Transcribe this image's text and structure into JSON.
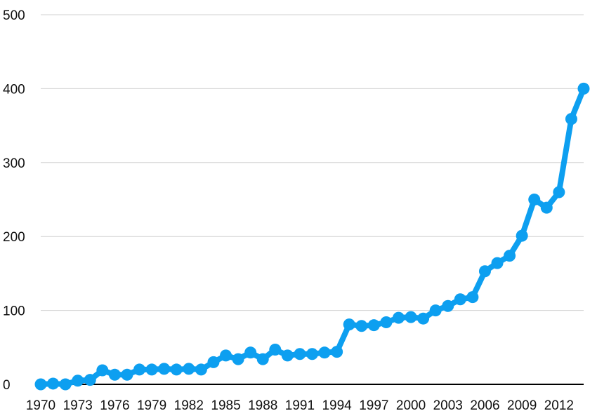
{
  "chart_data": {
    "type": "line",
    "title": "",
    "xlabel": "",
    "ylabel": "",
    "x": [
      1970,
      1971,
      1972,
      1973,
      1974,
      1975,
      1976,
      1977,
      1978,
      1979,
      1980,
      1981,
      1982,
      1983,
      1984,
      1985,
      1986,
      1987,
      1988,
      1989,
      1990,
      1991,
      1992,
      1993,
      1994,
      1995,
      1996,
      1997,
      1998,
      1999,
      2000,
      2001,
      2002,
      2003,
      2004,
      2005,
      2006,
      2007,
      2008,
      2009,
      2010,
      2011,
      2012,
      2013,
      2014
    ],
    "series": [
      {
        "values": [
          0,
          1,
          0,
          5,
          6,
          19,
          13,
          13,
          20,
          20,
          21,
          20,
          21,
          20,
          30,
          39,
          34,
          43,
          34,
          47,
          39,
          41,
          41,
          43,
          44,
          81,
          79,
          80,
          84,
          90,
          91,
          89,
          100,
          106,
          115,
          118,
          153,
          164,
          174,
          201,
          250,
          239,
          260,
          359,
          400
        ],
        "color": "#0d9ff0"
      }
    ],
    "ylim": [
      0,
      500
    ],
    "yticks": [
      0,
      100,
      200,
      300,
      400,
      500
    ],
    "xtick_labels": [
      "1970",
      "1973",
      "1976",
      "1979",
      "1982",
      "1985",
      "1988",
      "1991",
      "1994",
      "1997",
      "2000",
      "2003",
      "2006",
      "2009",
      "2012"
    ],
    "grid": true,
    "legend": "none",
    "colors": {
      "line": "#0d9ff0",
      "grid": "#d0d0d0",
      "axis": "#000000"
    }
  }
}
